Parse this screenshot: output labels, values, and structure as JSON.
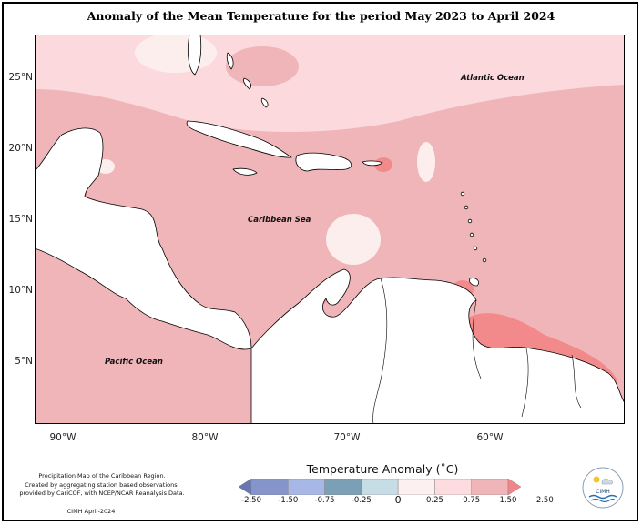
{
  "title": "Anomaly of the Mean Temperature for the period May 2023 to April 2024",
  "axes": {
    "lat_labels": [
      "25°N",
      "20°N",
      "15°N",
      "10°N",
      "5°N"
    ],
    "lon_labels": [
      "90°W",
      "80°W",
      "70°W",
      "60°W"
    ]
  },
  "ocean_labels": {
    "atlantic": "Atlantic Ocean",
    "caribbean": "Caribbean Sea",
    "pacific": "Pacific Ocean"
  },
  "credits": {
    "line1": "Precipitation Map of the Caribbean Region.",
    "line2": "Created by aggregating station based observations,",
    "line3": "provided by CariCOF, with NCEP/NCAR Reanalysis Data.",
    "footer": "CIMH April-2024"
  },
  "legend": {
    "title": "Temperature Anomaly (˚C)",
    "ticks": [
      "-2.50",
      "-1.50",
      "-0.75",
      "-0.25",
      "0",
      "0.25",
      "0.75",
      "1.50",
      "2.50"
    ],
    "colors": [
      "#6677b3",
      "#8595cc",
      "#a7b8e6",
      "#7b9fb4",
      "#c7dde5",
      "#fdf0f0",
      "#fcdcdf",
      "#f0b5b8",
      "#f28588"
    ]
  },
  "logo": {
    "text": "CIMH"
  },
  "colors": {
    "anomaly_light": "#fbd9dc",
    "anomaly_mid": "#f0b5b8",
    "anomaly_strong": "#f28a8c",
    "anomaly_near_zero": "#fdeeee",
    "land": "#ffffff"
  }
}
